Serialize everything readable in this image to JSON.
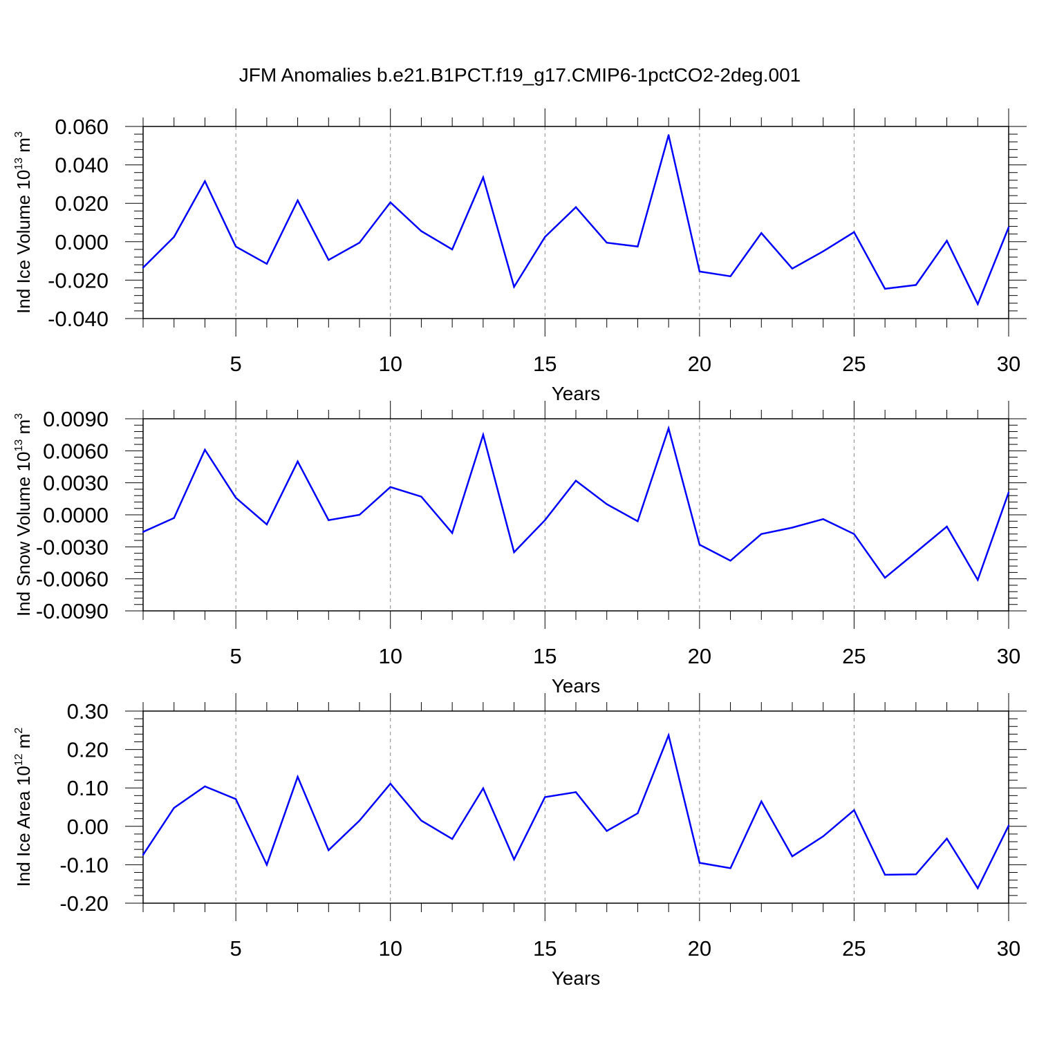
{
  "title": "JFM Anomalies b.e21.B1PCT.f19_g17.CMIP6-1pctCO2-2deg.001",
  "chart_data": [
    {
      "type": "line",
      "ylabel": "Ind Ice Volume 10",
      "ylabel_exp": "13",
      "ylabel_unit": " m",
      "ylabel_unit_exp": "3",
      "xlabel": "Years",
      "xlim": [
        2,
        30
      ],
      "ylim": [
        -0.04,
        0.06
      ],
      "xticks": [
        5,
        10,
        15,
        20,
        25,
        30
      ],
      "xtick_labels": [
        "5",
        "10",
        "15",
        "20",
        "25",
        "30"
      ],
      "yticks": [
        -0.04,
        -0.02,
        0.0,
        0.02,
        0.04,
        0.06
      ],
      "ytick_labels": [
        "-0.040",
        "-0.020",
        "0.000",
        "0.020",
        "0.040",
        "0.060"
      ],
      "color": "#0000ff",
      "grid": "vertical dashed at major x ticks",
      "x": [
        2,
        3,
        4,
        5,
        6,
        7,
        8,
        9,
        10,
        11,
        12,
        13,
        14,
        15,
        16,
        17,
        18,
        19,
        20,
        21,
        22,
        23,
        24,
        25,
        26,
        27,
        28,
        29,
        30
      ],
      "values": [
        -0.0135,
        0.0025,
        0.0315,
        -0.0025,
        -0.0115,
        0.0215,
        -0.0095,
        -0.0005,
        0.0205,
        0.0055,
        -0.004,
        0.0335,
        -0.0235,
        0.0025,
        0.018,
        -0.0005,
        -0.0025,
        0.0555,
        -0.0155,
        -0.018,
        0.0045,
        -0.014,
        -0.005,
        0.005,
        -0.0245,
        -0.0225,
        0.0005,
        -0.0325,
        0.0075
      ]
    },
    {
      "type": "line",
      "ylabel": "Ind Snow Volume 10",
      "ylabel_exp": "13",
      "ylabel_unit": " m",
      "ylabel_unit_exp": "3",
      "xlabel": "Years",
      "xlim": [
        2,
        30
      ],
      "ylim": [
        -0.009,
        0.009
      ],
      "xticks": [
        5,
        10,
        15,
        20,
        25,
        30
      ],
      "xtick_labels": [
        "5",
        "10",
        "15",
        "20",
        "25",
        "30"
      ],
      "yticks": [
        -0.009,
        -0.006,
        -0.003,
        0.0,
        0.003,
        0.006,
        0.009
      ],
      "ytick_labels": [
        "-0.0090",
        "-0.0060",
        "-0.0030",
        "0.0000",
        "0.0030",
        "0.0060",
        "0.0090"
      ],
      "color": "#0000ff",
      "grid": "vertical dashed at major x ticks",
      "x": [
        2,
        3,
        4,
        5,
        6,
        7,
        8,
        9,
        10,
        11,
        12,
        13,
        14,
        15,
        16,
        17,
        18,
        19,
        20,
        21,
        22,
        23,
        24,
        25,
        26,
        27,
        28,
        29,
        30
      ],
      "values": [
        -0.0016,
        -0.0003,
        0.0061,
        0.0016,
        -0.0009,
        0.005,
        -0.0005,
        0.0,
        0.0026,
        0.0017,
        -0.0017,
        0.0075,
        -0.0035,
        -0.0005,
        0.0032,
        0.001,
        -0.0006,
        0.0081,
        -0.0028,
        -0.0043,
        -0.0018,
        -0.0012,
        -0.0004,
        -0.0018,
        -0.0059,
        -0.0035,
        -0.0011,
        -0.0061,
        0.0021
      ]
    },
    {
      "type": "line",
      "ylabel": "Ind Ice Area 10",
      "ylabel_exp": "12",
      "ylabel_unit": " m",
      "ylabel_unit_exp": "2",
      "xlabel": "Years",
      "xlim": [
        2,
        30
      ],
      "ylim": [
        -0.2,
        0.3
      ],
      "xticks": [
        5,
        10,
        15,
        20,
        25,
        30
      ],
      "xtick_labels": [
        "5",
        "10",
        "15",
        "20",
        "25",
        "30"
      ],
      "yticks": [
        -0.2,
        -0.1,
        0.0,
        0.1,
        0.2,
        0.3
      ],
      "ytick_labels": [
        "-0.20",
        "-0.10",
        "0.00",
        "0.10",
        "0.20",
        "0.30"
      ],
      "color": "#0000ff",
      "grid": "vertical dashed at major x ticks",
      "x": [
        2,
        3,
        4,
        5,
        6,
        7,
        8,
        9,
        10,
        11,
        12,
        13,
        14,
        15,
        16,
        17,
        18,
        19,
        20,
        21,
        22,
        23,
        24,
        25,
        26,
        27,
        28,
        29,
        30
      ],
      "values": [
        -0.074,
        0.048,
        0.104,
        0.071,
        -0.1,
        0.129,
        -0.062,
        0.015,
        0.111,
        0.015,
        -0.033,
        0.099,
        -0.086,
        0.076,
        0.089,
        -0.012,
        0.034,
        0.237,
        -0.095,
        -0.109,
        0.065,
        -0.078,
        -0.026,
        0.042,
        -0.126,
        -0.125,
        -0.032,
        -0.161,
        0.002
      ]
    }
  ]
}
